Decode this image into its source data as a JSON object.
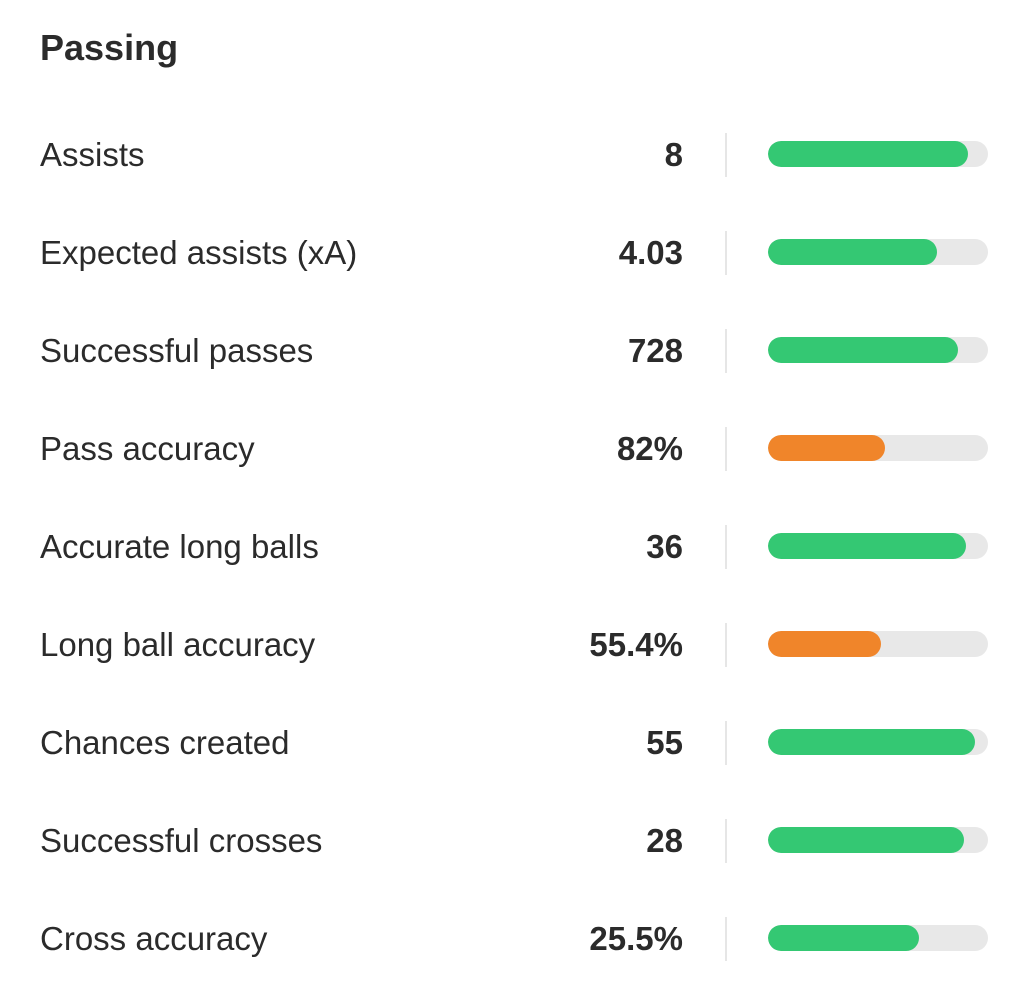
{
  "section": {
    "title": "Passing"
  },
  "colors": {
    "good": "#34c873",
    "average": "#f0852a",
    "track": "#e8e8e8"
  },
  "stats": [
    {
      "label": "Assists",
      "value": "8",
      "fill": 0.91,
      "level": "good"
    },
    {
      "label": "Expected assists (xA)",
      "value": "4.03",
      "fill": 0.77,
      "level": "good"
    },
    {
      "label": "Successful passes",
      "value": "728",
      "fill": 0.865,
      "level": "good"
    },
    {
      "label": "Pass accuracy",
      "value": "82%",
      "fill": 0.53,
      "level": "average"
    },
    {
      "label": "Accurate long balls",
      "value": "36",
      "fill": 0.9,
      "level": "good"
    },
    {
      "label": "Long ball accuracy",
      "value": "55.4%",
      "fill": 0.515,
      "level": "average"
    },
    {
      "label": "Chances created",
      "value": "55",
      "fill": 0.94,
      "level": "good"
    },
    {
      "label": "Successful crosses",
      "value": "28",
      "fill": 0.89,
      "level": "good"
    },
    {
      "label": "Cross accuracy",
      "value": "25.5%",
      "fill": 0.685,
      "level": "good"
    }
  ]
}
